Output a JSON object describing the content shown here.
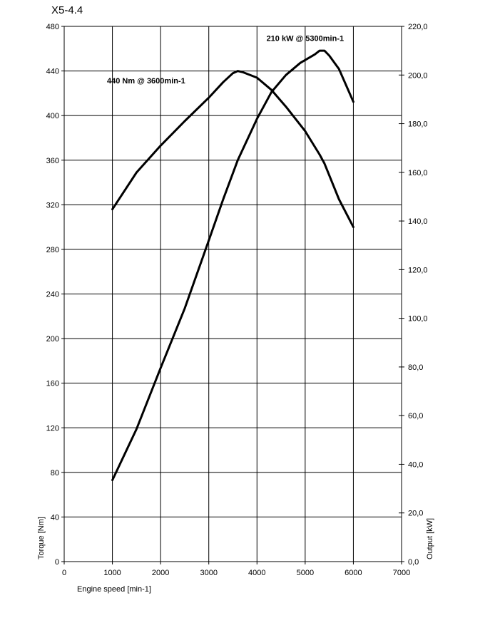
{
  "chart_data": {
    "type": "line",
    "title": "X5-4.4",
    "xlabel": "Engine speed [min-1]",
    "ylabel": "Torque [Nm]",
    "y2label": "Output [kW]",
    "xlim": [
      0,
      7000
    ],
    "ylim": [
      0,
      480
    ],
    "y2lim": [
      0,
      220
    ],
    "grid": true,
    "x_ticks": [
      "0",
      "1000",
      "2000",
      "3000",
      "4000",
      "5000",
      "6000",
      "7000"
    ],
    "y_ticks": [
      "0",
      "40",
      "80",
      "120",
      "160",
      "200",
      "240",
      "280",
      "320",
      "360",
      "400",
      "440",
      "480"
    ],
    "y2_ticks": [
      "0,0",
      "20,0",
      "40,0",
      "60,0",
      "80,0",
      "100,0",
      "120,0",
      "140,0",
      "160,0",
      "180,0",
      "200,0",
      "220,0"
    ],
    "series": [
      {
        "axis": "left",
        "x": [
          1000,
          1500,
          2000,
          2500,
          3000,
          3300,
          3500,
          3600,
          3700,
          4000,
          4300,
          4600,
          5000,
          5300,
          5400,
          5700,
          6000
        ],
        "values": [
          316,
          349,
          373,
          395,
          416,
          430,
          438,
          440,
          439,
          434,
          423,
          408,
          386,
          365,
          357,
          325,
          300
        ]
      },
      {
        "axis": "right",
        "x": [
          1000,
          1500,
          2000,
          2500,
          3000,
          3300,
          3600,
          4000,
          4300,
          4600,
          4900,
          5200,
          5300,
          5400,
          5500,
          5700,
          6000
        ],
        "values": [
          33.5,
          54.5,
          79.5,
          104,
          132,
          149,
          165,
          182,
          193,
          200,
          205,
          208.5,
          210,
          210,
          208,
          202.5,
          189
        ]
      }
    ],
    "annotations": [
      {
        "text": "440 Nm @ 3600min-1",
        "x": 1700,
        "y": 429
      },
      {
        "text": "210 kW @ 5300min-1",
        "x": 5000,
        "y": 467
      }
    ]
  }
}
